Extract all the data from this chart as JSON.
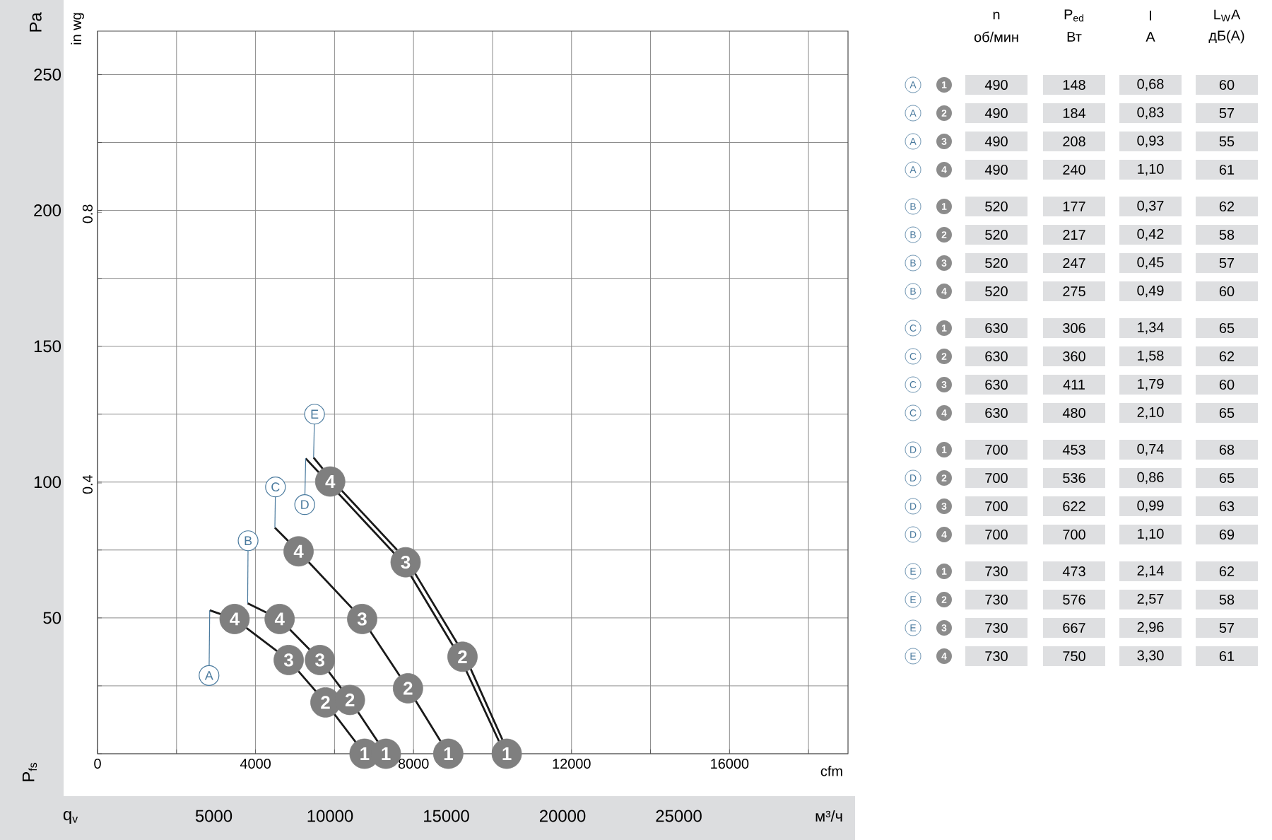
{
  "chart_data": [
    {
      "type": "line",
      "ylabel": "Pa",
      "y2label": "in wg",
      "xlabel": "cfm",
      "x2label": "м³/ч",
      "annotations": [
        "P$_{fs}$",
        "q$_{v}$",
        {
          "text": "4",
          "x": 3470,
          "y": 49.6
        },
        {
          "text": "3",
          "x": 4840,
          "y": 34.5
        },
        {
          "text": "2",
          "x": 5770,
          "y": 18.9
        },
        {
          "text": "1",
          "x": 6760,
          "y": 0
        },
        {
          "text": "4",
          "x": 4610,
          "y": 49.6
        },
        {
          "text": "3",
          "x": 5630,
          "y": 34.5
        },
        {
          "text": "2",
          "x": 6390,
          "y": 19.8
        },
        {
          "text": "1",
          "x": 7300,
          "y": 0
        },
        {
          "text": "4",
          "x": 5090,
          "y": 74.5
        },
        {
          "text": "3",
          "x": 6700,
          "y": 49.6
        },
        {
          "text": "2",
          "x": 7860,
          "y": 24.1
        },
        {
          "text": "1",
          "x": 8880,
          "y": 0
        },
        {
          "text": "4",
          "x": 5890,
          "y": 100.2
        },
        {
          "text": "3",
          "x": 7800,
          "y": 70.5
        },
        {
          "text": "2",
          "x": 9240,
          "y": 35.7
        },
        {
          "text": "1",
          "x": 10360,
          "y": 0
        }
      ],
      "xlim": [
        0,
        19000
      ],
      "xticks": [
        0,
        {
          "value": 2000,
          "label": null
        },
        4000,
        {
          "value": 6000,
          "label": null
        },
        8000,
        {
          "value": 10000,
          "label": null
        },
        12000,
        {
          "value": 14000,
          "label": null
        },
        16000,
        {
          "value": 18000,
          "label": null
        }
      ],
      "x2lim": [
        0,
        32280
      ],
      "x2ticks": [
        5000,
        10000,
        15000,
        20000,
        25000
      ],
      "ylim": [
        0,
        266
      ],
      "yticks": [
        {
          "value": 0,
          "label": null
        },
        {
          "value": 25,
          "label": null
        },
        50,
        {
          "value": 75,
          "label": null
        },
        100,
        {
          "value": 125,
          "label": null
        },
        150,
        {
          "value": 175,
          "label": null
        },
        200,
        {
          "value": 225,
          "label": null
        },
        250
      ],
      "y2lim": [
        0,
        1.068
      ],
      "y2ticks": [
        0.4,
        0.8
      ],
      "grid": true,
      "series": [
        {
          "name": "A",
          "color": "#1a1a1a",
          "x": [
            2840,
            3470,
            4840,
            5770,
            6760
          ],
          "values": [
            52.8,
            49.6,
            34.5,
            18.9,
            0
          ]
        },
        {
          "name": "B",
          "color": "#1a1a1a",
          "x": [
            3800,
            4610,
            5630,
            6390,
            7300
          ],
          "values": [
            55.4,
            49.6,
            34.5,
            19.8,
            0
          ]
        },
        {
          "name": "C",
          "color": "#1a1a1a",
          "x": [
            4490,
            5090,
            6700,
            7860,
            8880
          ],
          "values": [
            83.2,
            74.5,
            49.6,
            24.1,
            0
          ]
        },
        {
          "name": "D",
          "color": "#1a1a1a",
          "x": [
            5270,
            5830,
            7740,
            9180,
            10310
          ],
          "values": [
            108.7,
            100,
            70.2,
            35.4,
            0
          ]
        },
        {
          "name": "E",
          "color": "#1a1a1a",
          "x": [
            5470,
            5950,
            7860,
            9300,
            10410
          ],
          "values": [
            109,
            100.5,
            70.7,
            36,
            0
          ]
        },
        {
          "type": "scatter",
          "marker": "circle",
          "color": "#7f7f7f",
          "x": [
            3470,
            4840,
            5770,
            6760
          ],
          "values": [
            49.6,
            34.5,
            18.9,
            0
          ]
        },
        {
          "type": "scatter",
          "marker": "circle",
          "color": "#7f7f7f",
          "x": [
            4610,
            5630,
            6390,
            7300
          ],
          "values": [
            49.6,
            34.5,
            19.8,
            0
          ]
        },
        {
          "type": "scatter",
          "marker": "circle",
          "color": "#7f7f7f",
          "x": [
            5090,
            6700,
            7860,
            8880
          ],
          "values": [
            74.5,
            49.6,
            24.1,
            0
          ]
        },
        {
          "type": "scatter",
          "marker": "circle",
          "color": "#7f7f7f",
          "x": [
            5890,
            7800,
            9240,
            10360
          ],
          "values": [
            100.2,
            70.5,
            35.7,
            0
          ]
        }
      ]
    },
    {
      "type": "other",
      "annotations": [
        "n",
        "об/мин",
        "P$_{ed}$",
        "Вт",
        "I",
        "A",
        "L$_{W}$A",
        "дБ(A)",
        "A",
        "1",
        "490",
        "148",
        "0,68",
        "60",
        "A",
        "2",
        "490",
        "184",
        "0,83",
        "57",
        "A",
        "3",
        "490",
        "208",
        "0,93",
        "55",
        "A",
        "4",
        "490",
        "240",
        "1,10",
        "61",
        "B",
        "1",
        "520",
        "177",
        "0,37",
        "62",
        "B",
        "2",
        "520",
        "217",
        "0,42",
        "58",
        "B",
        "3",
        "520",
        "247",
        "0,45",
        "57",
        "B",
        "4",
        "520",
        "275",
        "0,49",
        "60",
        "C",
        "1",
        "630",
        "306",
        "1,34",
        "65",
        "C",
        "2",
        "630",
        "360",
        "1,58",
        "62",
        "C",
        "3",
        "630",
        "411",
        "1,79",
        "60",
        "C",
        "4",
        "630",
        "480",
        "2,10",
        "65",
        "D",
        "1",
        "700",
        "453",
        "0,74",
        "68",
        "D",
        "2",
        "700",
        "536",
        "0,86",
        "65",
        "D",
        "3",
        "700",
        "622",
        "0,99",
        "63",
        "D",
        "4",
        "700",
        "700",
        "1,10",
        "69",
        "E",
        "1",
        "730",
        "473",
        "2,14",
        "62",
        "E",
        "2",
        "730",
        "576",
        "2,57",
        "58",
        "E",
        "3",
        "730",
        "667",
        "2,96",
        "57",
        "E",
        "4",
        "730",
        "750",
        "3,30",
        "61"
      ]
    }
  ]
}
